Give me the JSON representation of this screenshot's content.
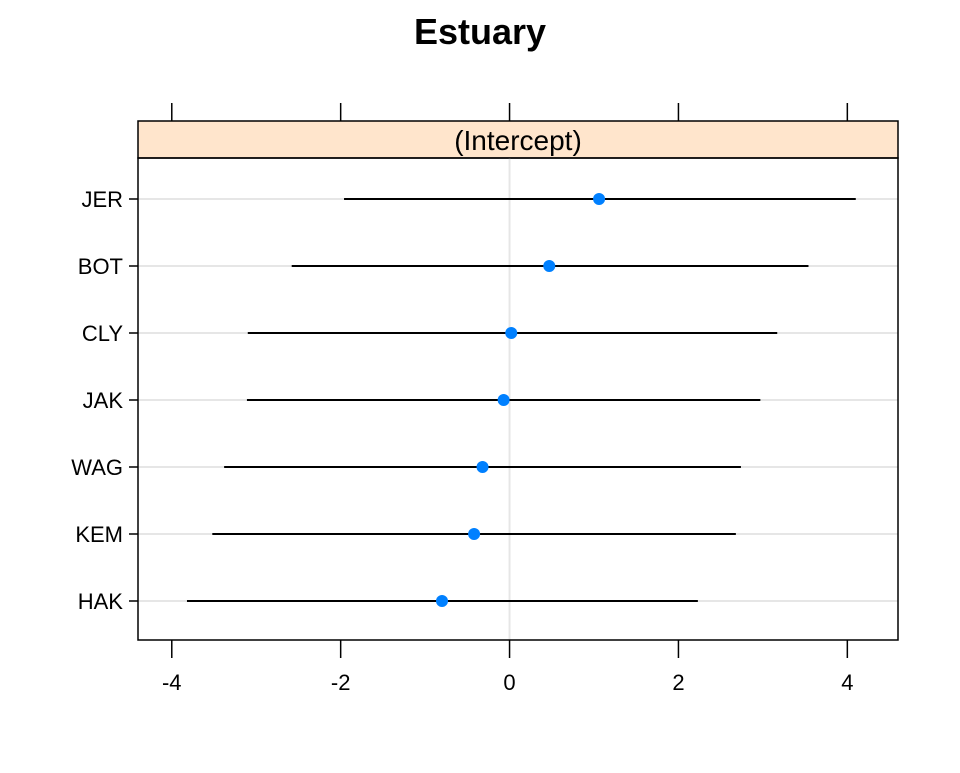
{
  "chart_data": {
    "type": "dotplot",
    "title": "Estuary",
    "panel_label": "(Intercept)",
    "categories": [
      "JER",
      "BOT",
      "CLY",
      "JAK",
      "WAG",
      "KEM",
      "HAK"
    ],
    "estimates": [
      1.06,
      0.47,
      0.02,
      -0.07,
      -0.32,
      -0.42,
      -0.8
    ],
    "lower": [
      -1.96,
      -2.58,
      -3.1,
      -3.11,
      -3.38,
      -3.52,
      -3.82
    ],
    "upper": [
      4.1,
      3.54,
      3.17,
      2.97,
      2.74,
      2.68,
      2.23
    ],
    "xlim": [
      -4.4,
      4.6
    ],
    "xticks": [
      -4,
      -2,
      0,
      2,
      4
    ],
    "xtick_labels": [
      "-4",
      "-2",
      "0",
      "2",
      "4"
    ],
    "xlabel": "",
    "ylabel": "",
    "grid": true,
    "legend": "none",
    "colors": {
      "point": "#0080ff",
      "interval": "#000000",
      "strip_fill": "#ffe5cc",
      "gridline": "#e6e6e6",
      "frame": "#000000"
    }
  }
}
